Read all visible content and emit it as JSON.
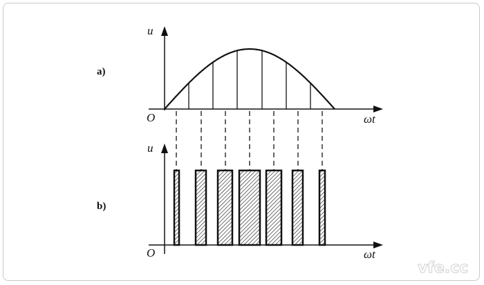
{
  "panels": [
    {
      "label": "a)",
      "y_axis": "u",
      "x_axis": "ωt",
      "origin": "O",
      "description_type": "sine-half-wave-sampled"
    },
    {
      "label": "b)",
      "y_axis": "u",
      "x_axis": "ωt",
      "origin": "O",
      "description_type": "pwm-pulse-train"
    }
  ],
  "sample_lines_count": 6,
  "pulse_count": 7,
  "watermark": "vfe.cc"
}
